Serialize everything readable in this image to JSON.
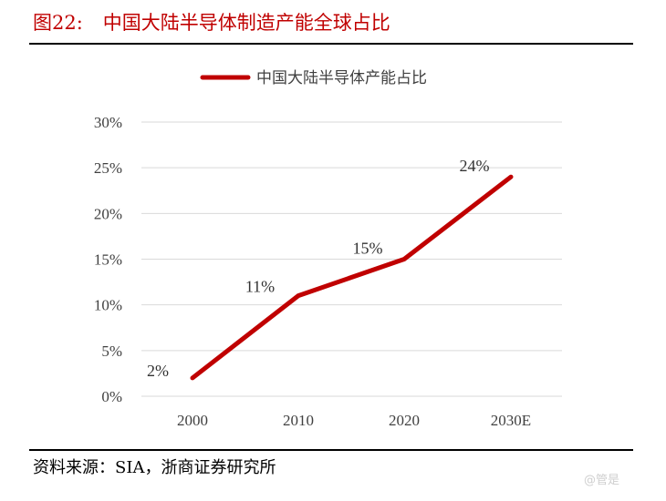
{
  "figure": {
    "label": "图22:",
    "title": "中国大陆半导体制造产能全球占比"
  },
  "source": "资料来源：SIA，浙商证券研究所",
  "watermark": "@管是",
  "colors": {
    "title": "#c00000",
    "series": "#c00000",
    "grid": "#d9d9d9",
    "text": "#404040"
  },
  "chart_data": {
    "type": "line",
    "categories": [
      "2000",
      "2010",
      "2020",
      "2030E"
    ],
    "series": [
      {
        "name": "中国大陆半导体产能占比",
        "values": [
          2,
          11,
          15,
          24
        ],
        "data_labels": [
          "2%",
          "11%",
          "15%",
          "24%"
        ]
      }
    ],
    "ylim": [
      0,
      30
    ],
    "y_ticks": [
      0,
      5,
      10,
      15,
      20,
      25,
      30
    ],
    "y_tick_labels": [
      "0%",
      "5%",
      "10%",
      "15%",
      "20%",
      "25%",
      "30%"
    ],
    "grid": true,
    "legend": "top-center"
  }
}
